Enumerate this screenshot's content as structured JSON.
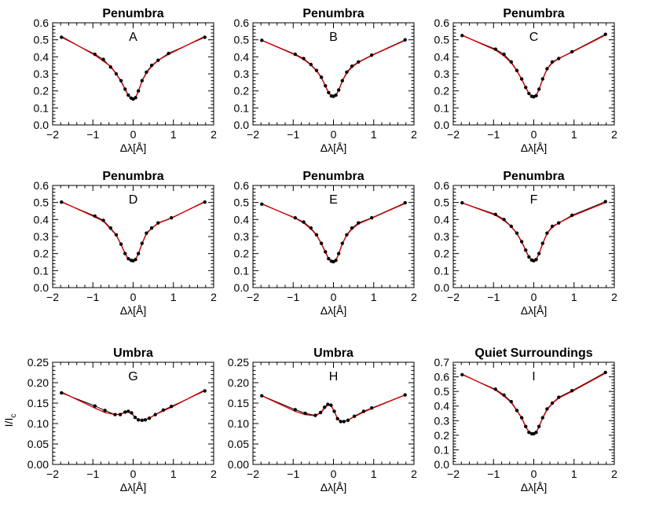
{
  "figure": {
    "ylabel": "I/I",
    "ylabel_sub": "c"
  },
  "colors": {
    "fit": "#d40000",
    "observed": "#000000"
  },
  "chart_data": [
    {
      "type": "line",
      "title": "Penumbra",
      "letter": "A",
      "xlabel": "Δλ[Å]",
      "xlim": [
        -2,
        2
      ],
      "ylim": [
        0,
        0.6
      ],
      "xticks": [
        "−2",
        "−1",
        "0",
        "1",
        "2"
      ],
      "yticks": [
        "0.0",
        "0.1",
        "0.2",
        "0.3",
        "0.4",
        "0.5",
        "0.6"
      ],
      "x": [
        -1.78,
        -0.95,
        -0.74,
        -0.56,
        -0.42,
        -0.3,
        -0.2,
        -0.12,
        -0.05,
        0.0,
        0.06,
        0.13,
        0.22,
        0.33,
        0.46,
        0.62,
        0.88,
        1.78
      ],
      "observed": [
        0.515,
        0.415,
        0.385,
        0.34,
        0.3,
        0.26,
        0.21,
        0.175,
        0.158,
        0.152,
        0.16,
        0.2,
        0.26,
        0.31,
        0.35,
        0.38,
        0.42,
        0.515
      ],
      "fit": [
        0.52,
        0.41,
        0.375,
        0.345,
        0.3,
        0.255,
        0.21,
        0.172,
        0.155,
        0.153,
        0.162,
        0.198,
        0.258,
        0.305,
        0.345,
        0.38,
        0.415,
        0.52
      ]
    },
    {
      "type": "line",
      "title": "Penumbra",
      "letter": "B",
      "xlabel": "Δλ[Å]",
      "xlim": [
        -2,
        2
      ],
      "ylim": [
        0,
        0.6
      ],
      "xticks": [
        "−2",
        "−1",
        "0",
        "1",
        "2"
      ],
      "yticks": [
        "0.0",
        "0.1",
        "0.2",
        "0.3",
        "0.4",
        "0.5",
        "0.6"
      ],
      "x": [
        -1.78,
        -0.95,
        -0.74,
        -0.56,
        -0.42,
        -0.3,
        -0.2,
        -0.12,
        -0.05,
        0.0,
        0.06,
        0.13,
        0.22,
        0.33,
        0.46,
        0.62,
        0.95,
        1.78
      ],
      "observed": [
        0.497,
        0.415,
        0.39,
        0.355,
        0.32,
        0.28,
        0.23,
        0.19,
        0.17,
        0.168,
        0.175,
        0.205,
        0.26,
        0.31,
        0.345,
        0.37,
        0.41,
        0.5
      ],
      "fit": [
        0.497,
        0.412,
        0.385,
        0.352,
        0.318,
        0.278,
        0.228,
        0.188,
        0.17,
        0.168,
        0.176,
        0.204,
        0.258,
        0.305,
        0.34,
        0.368,
        0.408,
        0.497
      ]
    },
    {
      "type": "line",
      "title": "Penumbra",
      "letter": "C",
      "xlabel": "Δλ[Å]",
      "xlim": [
        -2,
        2
      ],
      "ylim": [
        0,
        0.6
      ],
      "xticks": [
        "−2",
        "−1",
        "0",
        "1",
        "2"
      ],
      "yticks": [
        "0.0",
        "0.1",
        "0.2",
        "0.3",
        "0.4",
        "0.5",
        "0.6"
      ],
      "x": [
        -1.78,
        -0.95,
        -0.74,
        -0.56,
        -0.42,
        -0.3,
        -0.2,
        -0.12,
        -0.05,
        0.0,
        0.06,
        0.13,
        0.22,
        0.33,
        0.46,
        0.62,
        0.95,
        1.78
      ],
      "observed": [
        0.525,
        0.445,
        0.415,
        0.37,
        0.32,
        0.27,
        0.22,
        0.185,
        0.168,
        0.165,
        0.172,
        0.21,
        0.27,
        0.33,
        0.37,
        0.39,
        0.43,
        0.532
      ],
      "fit": [
        0.527,
        0.44,
        0.405,
        0.365,
        0.318,
        0.268,
        0.22,
        0.183,
        0.167,
        0.165,
        0.173,
        0.208,
        0.268,
        0.328,
        0.365,
        0.39,
        0.428,
        0.528
      ]
    },
    {
      "type": "line",
      "title": "Penumbra",
      "letter": "D",
      "xlabel": "Δλ[Å]",
      "xlim": [
        -2,
        2
      ],
      "ylim": [
        0,
        0.6
      ],
      "xticks": [
        "−2",
        "−1",
        "0",
        "1",
        "2"
      ],
      "yticks": [
        "0.0",
        "0.1",
        "0.2",
        "0.3",
        "0.4",
        "0.5",
        "0.6"
      ],
      "x": [
        -1.78,
        -0.95,
        -0.74,
        -0.56,
        -0.42,
        -0.3,
        -0.2,
        -0.12,
        -0.05,
        0.0,
        0.06,
        0.13,
        0.22,
        0.33,
        0.46,
        0.62,
        0.95,
        1.78
      ],
      "observed": [
        0.502,
        0.42,
        0.395,
        0.35,
        0.31,
        0.255,
        0.2,
        0.17,
        0.16,
        0.158,
        0.165,
        0.2,
        0.26,
        0.32,
        0.35,
        0.38,
        0.41,
        0.502
      ],
      "fit": [
        0.505,
        0.415,
        0.39,
        0.345,
        0.308,
        0.252,
        0.2,
        0.168,
        0.158,
        0.158,
        0.166,
        0.198,
        0.258,
        0.316,
        0.348,
        0.378,
        0.408,
        0.505
      ]
    },
    {
      "type": "line",
      "title": "Penumbra",
      "letter": "E",
      "xlabel": "Δλ[Å]",
      "xlim": [
        -2,
        2
      ],
      "ylim": [
        0,
        0.6
      ],
      "xticks": [
        "−2",
        "−1",
        "0",
        "1",
        "2"
      ],
      "yticks": [
        "0.0",
        "0.1",
        "0.2",
        "0.3",
        "0.4",
        "0.5",
        "0.6"
      ],
      "x": [
        -1.78,
        -0.95,
        -0.74,
        -0.56,
        -0.42,
        -0.3,
        -0.2,
        -0.12,
        -0.05,
        0.0,
        0.06,
        0.13,
        0.22,
        0.33,
        0.46,
        0.62,
        0.95,
        1.78
      ],
      "observed": [
        0.49,
        0.41,
        0.385,
        0.35,
        0.31,
        0.26,
        0.21,
        0.17,
        0.155,
        0.152,
        0.16,
        0.2,
        0.26,
        0.31,
        0.35,
        0.38,
        0.41,
        0.498
      ],
      "fit": [
        0.492,
        0.408,
        0.38,
        0.345,
        0.308,
        0.258,
        0.208,
        0.168,
        0.153,
        0.152,
        0.161,
        0.198,
        0.258,
        0.308,
        0.345,
        0.375,
        0.408,
        0.495
      ]
    },
    {
      "type": "line",
      "title": "Penumbra",
      "letter": "F",
      "xlabel": "Δλ[Å]",
      "xlim": [
        -2,
        2
      ],
      "ylim": [
        0,
        0.6
      ],
      "xticks": [
        "−2",
        "−1",
        "0",
        "1",
        "2"
      ],
      "yticks": [
        "0.0",
        "0.1",
        "0.2",
        "0.3",
        "0.4",
        "0.5",
        "0.6"
      ],
      "x": [
        -1.78,
        -0.95,
        -0.74,
        -0.56,
        -0.42,
        -0.3,
        -0.2,
        -0.12,
        -0.05,
        0.0,
        0.06,
        0.13,
        0.22,
        0.33,
        0.46,
        0.62,
        0.95,
        1.78
      ],
      "observed": [
        0.498,
        0.43,
        0.4,
        0.36,
        0.32,
        0.27,
        0.22,
        0.18,
        0.162,
        0.158,
        0.165,
        0.2,
        0.26,
        0.32,
        0.36,
        0.38,
        0.425,
        0.505
      ],
      "fit": [
        0.498,
        0.425,
        0.395,
        0.358,
        0.318,
        0.268,
        0.218,
        0.178,
        0.16,
        0.158,
        0.166,
        0.198,
        0.258,
        0.318,
        0.355,
        0.38,
        0.42,
        0.5
      ]
    },
    {
      "type": "line",
      "title": "Umbra",
      "letter": "G",
      "xlabel": "Δλ[Å]",
      "xlim": [
        -2,
        2
      ],
      "ylim": [
        0,
        0.25
      ],
      "xticks": [
        "−2",
        "−1",
        "0",
        "1",
        "2"
      ],
      "yticks": [
        "0.00",
        "0.05",
        "0.10",
        "0.15",
        "0.20",
        "0.25"
      ],
      "x": [
        -1.78,
        -0.95,
        -0.7,
        -0.45,
        -0.32,
        -0.2,
        -0.12,
        -0.04,
        0.05,
        0.13,
        0.22,
        0.3,
        0.4,
        0.55,
        0.75,
        0.95,
        1.78
      ],
      "observed": [
        0.175,
        0.143,
        0.132,
        0.122,
        0.122,
        0.128,
        0.13,
        0.126,
        0.115,
        0.109,
        0.108,
        0.109,
        0.113,
        0.122,
        0.133,
        0.142,
        0.18
      ],
      "fit": [
        0.177,
        0.138,
        0.127,
        0.122,
        0.123,
        0.128,
        0.13,
        0.125,
        0.115,
        0.109,
        0.108,
        0.109,
        0.113,
        0.122,
        0.131,
        0.14,
        0.182
      ]
    },
    {
      "type": "line",
      "title": "Umbra",
      "letter": "H",
      "xlabel": "Δλ[Å]",
      "xlim": [
        -2,
        2
      ],
      "ylim": [
        0,
        0.25
      ],
      "xticks": [
        "−2",
        "−1",
        "0",
        "1",
        "2"
      ],
      "yticks": [
        "0.00",
        "0.05",
        "0.10",
        "0.15",
        "0.20",
        "0.25"
      ],
      "x": [
        -1.78,
        -0.95,
        -0.7,
        -0.45,
        -0.32,
        -0.22,
        -0.14,
        -0.06,
        0.02,
        0.1,
        0.18,
        0.26,
        0.36,
        0.52,
        0.75,
        0.95,
        1.78
      ],
      "observed": [
        0.168,
        0.134,
        0.125,
        0.12,
        0.127,
        0.14,
        0.147,
        0.145,
        0.13,
        0.112,
        0.105,
        0.105,
        0.108,
        0.118,
        0.13,
        0.138,
        0.17
      ],
      "fit": [
        0.168,
        0.13,
        0.122,
        0.119,
        0.126,
        0.138,
        0.146,
        0.144,
        0.13,
        0.112,
        0.105,
        0.104,
        0.108,
        0.117,
        0.128,
        0.137,
        0.17
      ]
    },
    {
      "type": "line",
      "title": "Quiet Surroundings",
      "letter": "I",
      "xlabel": "Δλ[Å]",
      "xlim": [
        -2,
        2
      ],
      "ylim": [
        0,
        0.7
      ],
      "xticks": [
        "−2",
        "−1",
        "0",
        "1",
        "2"
      ],
      "yticks": [
        "0.0",
        "0.1",
        "0.2",
        "0.3",
        "0.4",
        "0.5",
        "0.6",
        "0.7"
      ],
      "x": [
        -1.78,
        -0.95,
        -0.74,
        -0.56,
        -0.42,
        -0.3,
        -0.2,
        -0.12,
        -0.05,
        0.0,
        0.06,
        0.13,
        0.22,
        0.33,
        0.46,
        0.62,
        0.95,
        1.78
      ],
      "observed": [
        0.615,
        0.515,
        0.475,
        0.43,
        0.37,
        0.32,
        0.26,
        0.22,
        0.21,
        0.21,
        0.22,
        0.26,
        0.32,
        0.38,
        0.42,
        0.46,
        0.505,
        0.63
      ],
      "fit": [
        0.618,
        0.51,
        0.468,
        0.425,
        0.368,
        0.318,
        0.258,
        0.222,
        0.21,
        0.208,
        0.218,
        0.258,
        0.318,
        0.375,
        0.418,
        0.455,
        0.5,
        0.625
      ]
    }
  ]
}
